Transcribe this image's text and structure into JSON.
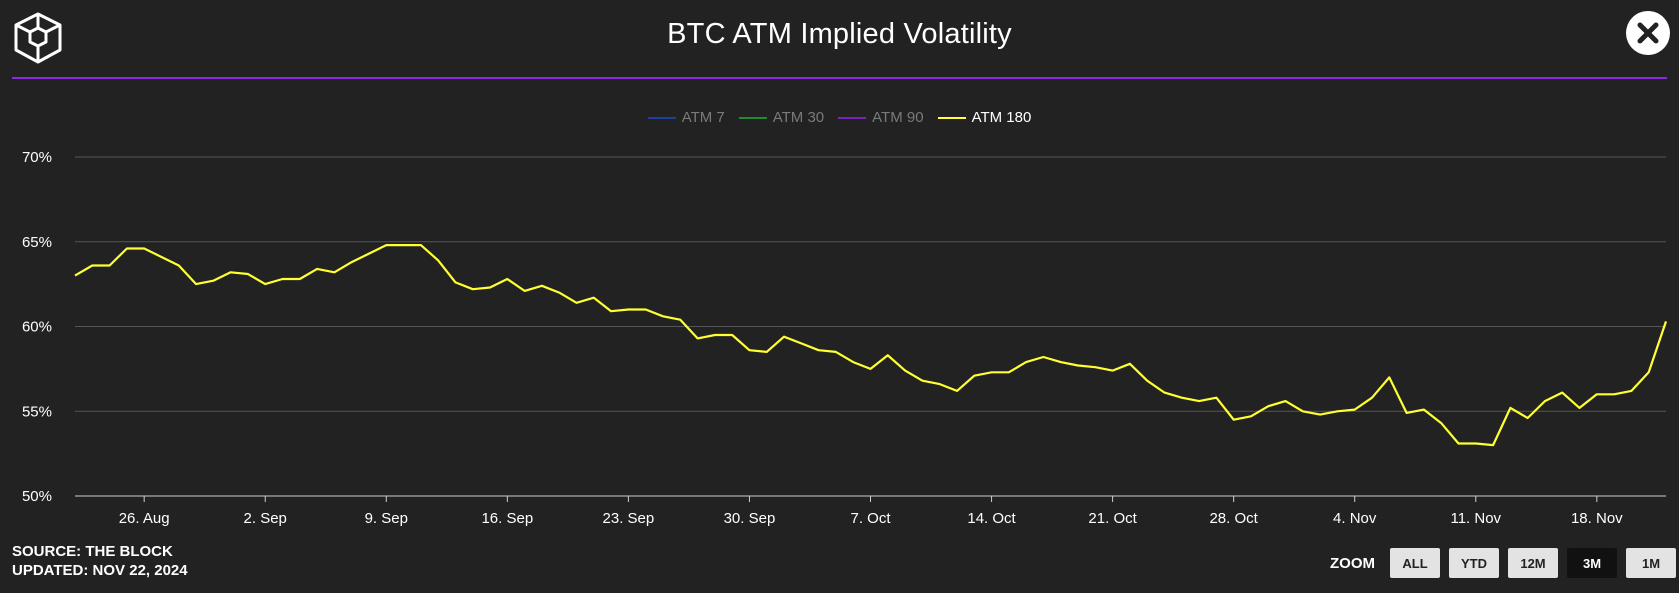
{
  "header": {
    "title": "BTC ATM Implied Volatility",
    "logo_icon": "cube-logo-icon",
    "close_icon": "close-icon"
  },
  "footer": {
    "source": "SOURCE: THE BLOCK",
    "updated": "UPDATED: NOV 22, 2024"
  },
  "zoom": {
    "label": "ZOOM",
    "buttons": [
      {
        "label": "ALL",
        "active": false
      },
      {
        "label": "YTD",
        "active": false
      },
      {
        "label": "12M",
        "active": false
      },
      {
        "label": "3M",
        "active": true
      },
      {
        "label": "1M",
        "active": false
      }
    ]
  },
  "colors": {
    "background": "#222222",
    "accent_rule": "#8a2be2",
    "grid": "#555555"
  },
  "chart_data": {
    "type": "line",
    "title": "BTC ATM Implied Volatility",
    "xlabel": "",
    "ylabel": "",
    "ylim": [
      50,
      70
    ],
    "yticks": [
      50,
      55,
      60,
      65,
      70
    ],
    "ytick_labels": [
      "50%",
      "55%",
      "60%",
      "65%",
      "70%"
    ],
    "x_range": [
      "2024-08-22",
      "2024-11-22"
    ],
    "xticks": [
      {
        "date": "2024-08-26",
        "label": "26. Aug"
      },
      {
        "date": "2024-09-02",
        "label": "2. Sep"
      },
      {
        "date": "2024-09-09",
        "label": "9. Sep"
      },
      {
        "date": "2024-09-16",
        "label": "16. Sep"
      },
      {
        "date": "2024-09-23",
        "label": "23. Sep"
      },
      {
        "date": "2024-09-30",
        "label": "30. Sep"
      },
      {
        "date": "2024-10-07",
        "label": "7. Oct"
      },
      {
        "date": "2024-10-14",
        "label": "14. Oct"
      },
      {
        "date": "2024-10-21",
        "label": "21. Oct"
      },
      {
        "date": "2024-10-28",
        "label": "28. Oct"
      },
      {
        "date": "2024-11-04",
        "label": "4. Nov"
      },
      {
        "date": "2024-11-11",
        "label": "11. Nov"
      },
      {
        "date": "2024-11-18",
        "label": "18. Nov"
      }
    ],
    "grid": true,
    "legend_position": "top-center",
    "series": [
      {
        "name": "ATM 7",
        "color": "#1f3f9e",
        "visible": false,
        "points": []
      },
      {
        "name": "ATM 30",
        "color": "#1f8a2e",
        "visible": false,
        "points": []
      },
      {
        "name": "ATM 90",
        "color": "#7a22b8",
        "visible": false,
        "points": []
      },
      {
        "name": "ATM 180",
        "color": "#ffff33",
        "visible": true,
        "points": [
          [
            "2024-08-22",
            63.0
          ],
          [
            "2024-08-23",
            63.6
          ],
          [
            "2024-08-24",
            63.6
          ],
          [
            "2024-08-25",
            64.6
          ],
          [
            "2024-08-26",
            64.6
          ],
          [
            "2024-08-27",
            64.1
          ],
          [
            "2024-08-28",
            63.6
          ],
          [
            "2024-08-29",
            62.5
          ],
          [
            "2024-08-30",
            62.7
          ],
          [
            "2024-08-31",
            63.2
          ],
          [
            "2024-09-01",
            63.1
          ],
          [
            "2024-09-02",
            62.5
          ],
          [
            "2024-09-03",
            62.8
          ],
          [
            "2024-09-04",
            62.8
          ],
          [
            "2024-09-05",
            63.4
          ],
          [
            "2024-09-06",
            63.2
          ],
          [
            "2024-09-07",
            63.8
          ],
          [
            "2024-09-08",
            64.3
          ],
          [
            "2024-09-09",
            64.8
          ],
          [
            "2024-09-10",
            64.8
          ],
          [
            "2024-09-11",
            64.8
          ],
          [
            "2024-09-12",
            63.9
          ],
          [
            "2024-09-13",
            62.6
          ],
          [
            "2024-09-14",
            62.2
          ],
          [
            "2024-09-15",
            62.3
          ],
          [
            "2024-09-16",
            62.8
          ],
          [
            "2024-09-17",
            62.1
          ],
          [
            "2024-09-18",
            62.4
          ],
          [
            "2024-09-19",
            62.0
          ],
          [
            "2024-09-20",
            61.4
          ],
          [
            "2024-09-21",
            61.7
          ],
          [
            "2024-09-22",
            60.9
          ],
          [
            "2024-09-23",
            61.0
          ],
          [
            "2024-09-24",
            61.0
          ],
          [
            "2024-09-25",
            60.6
          ],
          [
            "2024-09-26",
            60.4
          ],
          [
            "2024-09-27",
            59.3
          ],
          [
            "2024-09-28",
            59.5
          ],
          [
            "2024-09-29",
            59.5
          ],
          [
            "2024-09-30",
            58.6
          ],
          [
            "2024-10-01",
            58.5
          ],
          [
            "2024-10-02",
            59.4
          ],
          [
            "2024-10-03",
            59.0
          ],
          [
            "2024-10-04",
            58.6
          ],
          [
            "2024-10-05",
            58.5
          ],
          [
            "2024-10-06",
            57.9
          ],
          [
            "2024-10-07",
            57.5
          ],
          [
            "2024-10-08",
            58.3
          ],
          [
            "2024-10-09",
            57.4
          ],
          [
            "2024-10-10",
            56.8
          ],
          [
            "2024-10-11",
            56.6
          ],
          [
            "2024-10-12",
            56.2
          ],
          [
            "2024-10-13",
            57.1
          ],
          [
            "2024-10-14",
            57.3
          ],
          [
            "2024-10-15",
            57.3
          ],
          [
            "2024-10-16",
            57.9
          ],
          [
            "2024-10-17",
            58.2
          ],
          [
            "2024-10-18",
            57.9
          ],
          [
            "2024-10-19",
            57.7
          ],
          [
            "2024-10-20",
            57.6
          ],
          [
            "2024-10-21",
            57.4
          ],
          [
            "2024-10-22",
            57.8
          ],
          [
            "2024-10-23",
            56.8
          ],
          [
            "2024-10-24",
            56.1
          ],
          [
            "2024-10-25",
            55.8
          ],
          [
            "2024-10-26",
            55.6
          ],
          [
            "2024-10-27",
            55.8
          ],
          [
            "2024-10-28",
            54.5
          ],
          [
            "2024-10-29",
            54.7
          ],
          [
            "2024-10-30",
            55.3
          ],
          [
            "2024-10-31",
            55.6
          ],
          [
            "2024-11-01",
            55.0
          ],
          [
            "2024-11-02",
            54.8
          ],
          [
            "2024-11-03",
            55.0
          ],
          [
            "2024-11-04",
            55.1
          ],
          [
            "2024-11-05",
            55.8
          ],
          [
            "2024-11-06",
            57.0
          ],
          [
            "2024-11-07",
            54.9
          ],
          [
            "2024-11-08",
            55.1
          ],
          [
            "2024-11-09",
            54.3
          ],
          [
            "2024-11-10",
            53.1
          ],
          [
            "2024-11-11",
            53.1
          ],
          [
            "2024-11-12",
            53.0
          ],
          [
            "2024-11-13",
            55.2
          ],
          [
            "2024-11-14",
            54.6
          ],
          [
            "2024-11-15",
            55.6
          ],
          [
            "2024-11-16",
            56.1
          ],
          [
            "2024-11-17",
            55.2
          ],
          [
            "2024-11-18",
            56.0
          ],
          [
            "2024-11-19",
            56.0
          ],
          [
            "2024-11-20",
            56.2
          ],
          [
            "2024-11-21",
            57.3
          ],
          [
            "2024-11-22",
            60.3
          ]
        ]
      }
    ]
  }
}
